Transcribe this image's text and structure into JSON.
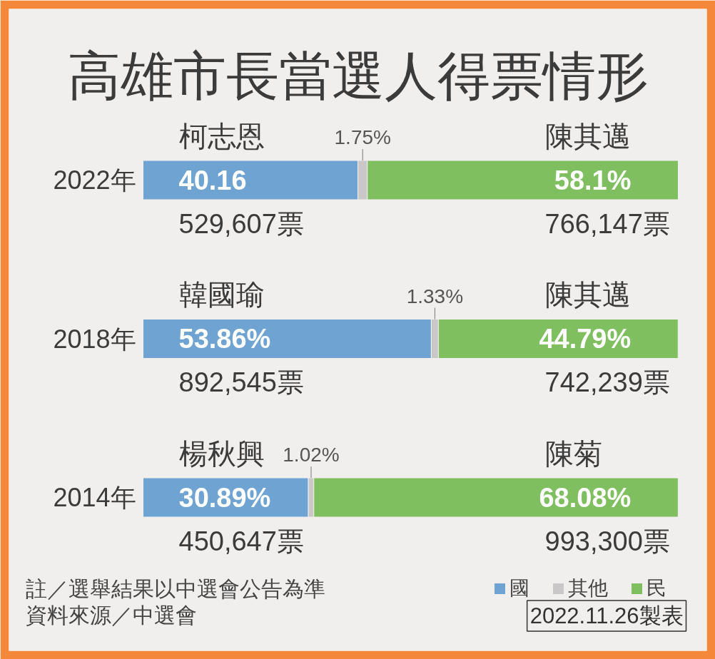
{
  "chart_data": {
    "type": "bar",
    "orientation": "horizontal",
    "stacked": true,
    "title": "高雄市長當選人得票情形",
    "categories": [
      "2022年",
      "2018年",
      "2014年"
    ],
    "tick_labels": "y",
    "series": [
      {
        "name": "國",
        "color": "#6fa3d2",
        "values": [
          40.16,
          53.86,
          30.89
        ],
        "value_labels": [
          "40.16",
          "53.86%",
          "30.89%"
        ]
      },
      {
        "name": "其他",
        "color": "#c9c7c7",
        "values": [
          1.75,
          1.33,
          1.02
        ],
        "value_labels": [
          "1.75%",
          "1.33%",
          "1.02%"
        ]
      },
      {
        "name": "民",
        "color": "#80bf5f",
        "values": [
          58.1,
          44.79,
          68.08
        ],
        "value_labels": [
          "58.1%",
          "44.79%",
          "68.08%"
        ]
      }
    ],
    "legend": "bottom right",
    "annotations": [
      "柯志恩",
      "陳其邁",
      "529,607票",
      "766,147票",
      "韓國瑜",
      "陳其邁",
      "892,545票",
      "742,239票",
      "楊秋興",
      "陳菊",
      "450,647票",
      "993,300票",
      "註／選舉結果以中選會公告為準",
      "資料來源／中選會",
      "2022.11.26製表"
    ]
  }
}
